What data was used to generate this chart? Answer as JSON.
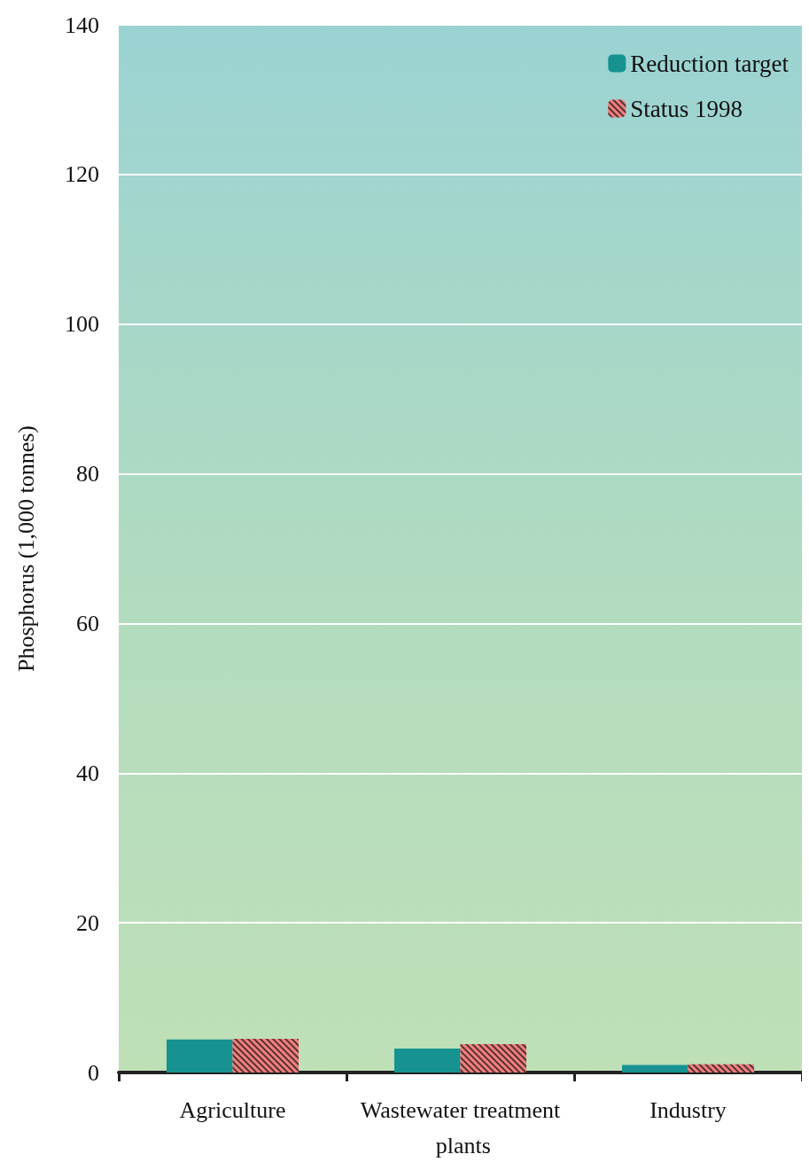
{
  "chart_data": {
    "type": "bar",
    "ylabel": "Phosphorus (1,000 tonnes)",
    "categories": [
      "Agriculture",
      "Wastewater treatment plants",
      "Industry"
    ],
    "series": [
      {
        "name": "Reduction target",
        "color": "#169391",
        "values": [
          4.4,
          3.2,
          1.0
        ]
      },
      {
        "name": "Status 1998",
        "color": "#f08080",
        "values": [
          4.5,
          3.8,
          1.1
        ]
      }
    ],
    "ylim": [
      0,
      140
    ],
    "yticks": [
      0,
      20,
      40,
      60,
      80,
      100,
      120,
      140
    ],
    "grid": "y",
    "legend": "top right"
  }
}
